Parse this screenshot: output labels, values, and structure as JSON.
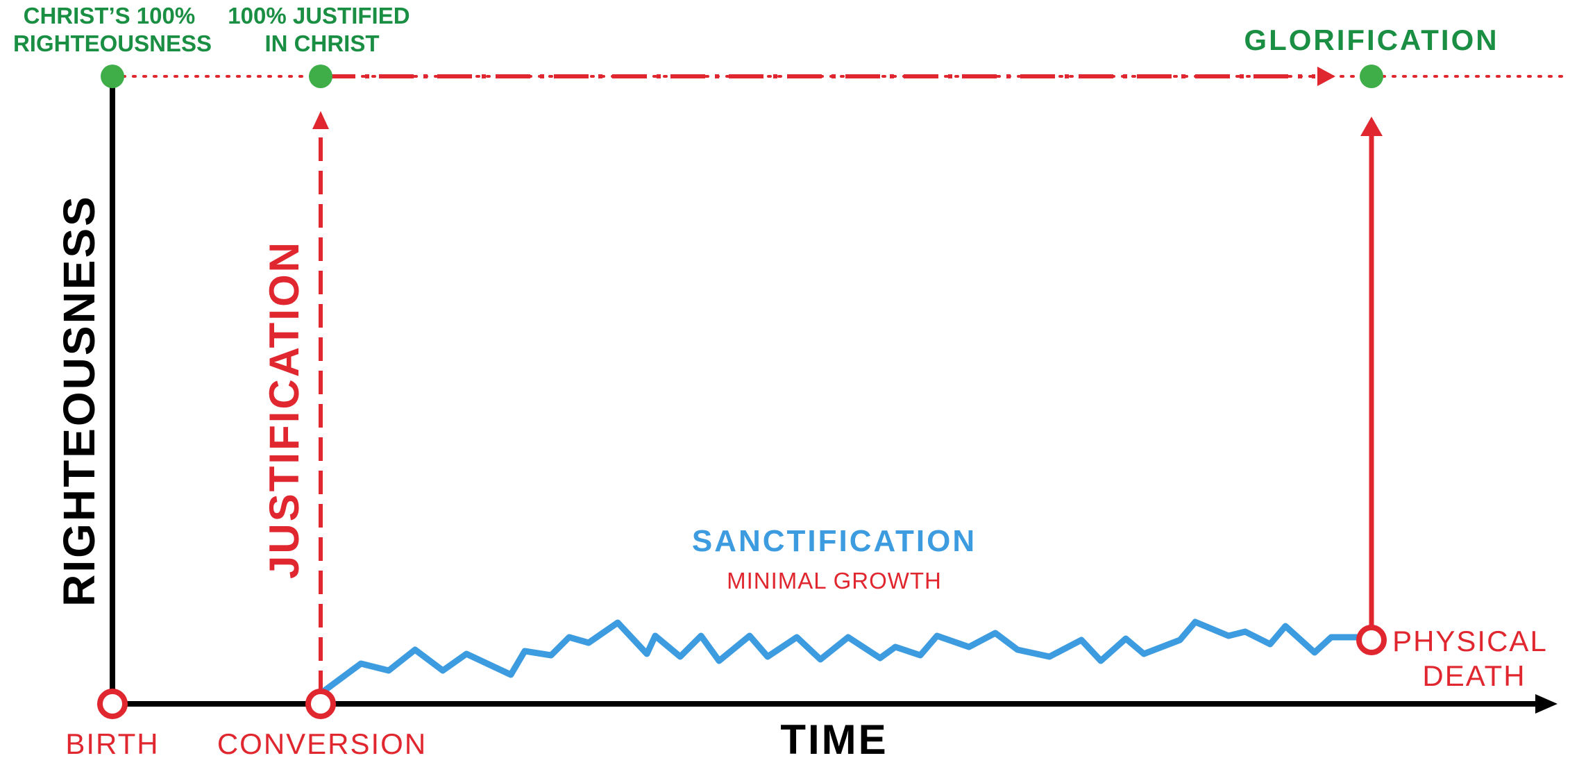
{
  "colors": {
    "green": "#1a8f44",
    "green_dot": "#3fae49",
    "red": "#e0262e",
    "blue": "#3d9be0",
    "black": "#000000"
  },
  "labels": {
    "christ_righteousness": [
      "CHRIST’S 100%",
      "RIGHTEOUSNESS"
    ],
    "justified_in_christ": [
      "100% JUSTIFIED",
      "IN CHRIST"
    ],
    "glorification": "GLORIFICATION",
    "righteousness_axis": "RIGHTEOUSNESS",
    "time_axis": "TIME",
    "justification": "JUSTIFICATION",
    "sanctification": "SANCTIFICATION",
    "minimal_growth": "MINIMAL GROWTH",
    "birth": "BIRTH",
    "conversion": "CONVERSION",
    "physical_death": [
      "PHYSICAL",
      "DEATH"
    ]
  },
  "icons": {
    "birth_marker": "open-circle-icon",
    "conversion_marker": "open-circle-icon",
    "death_marker": "open-circle-icon",
    "christ_dot": "filled-circle-icon",
    "justified_dot": "filled-circle-icon",
    "glory_dot": "filled-circle-icon"
  }
}
